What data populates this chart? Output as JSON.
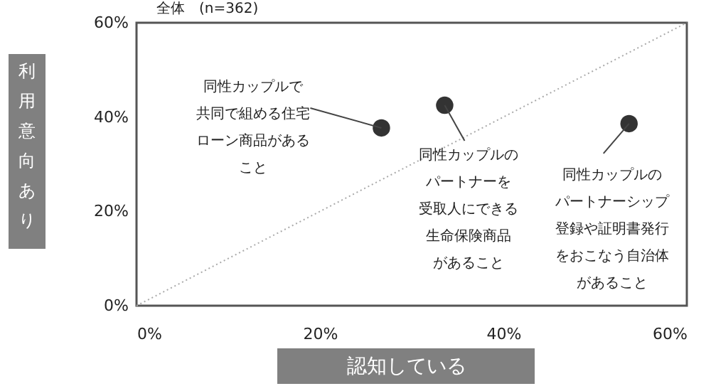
{
  "chart_data": {
    "type": "scatter",
    "title": "全体　(n=362)",
    "xlabel": "認知している",
    "ylabel": "利用意向あり",
    "xlim": [
      0,
      60
    ],
    "ylim": [
      0,
      60
    ],
    "xticks": [
      {
        "value": 0,
        "label": "0%"
      },
      {
        "value": 20,
        "label": "20%"
      },
      {
        "value": 40,
        "label": "40%"
      },
      {
        "value": 60,
        "label": "60%"
      }
    ],
    "yticks": [
      {
        "value": 0,
        "label": "0%"
      },
      {
        "value": 20,
        "label": "20%"
      },
      {
        "value": 40,
        "label": "40%"
      },
      {
        "value": 60,
        "label": "60%"
      }
    ],
    "grid": false,
    "marker": "circle",
    "series": [
      {
        "type": "line",
        "color": "#aaaaaa",
        "line_style": "dotted",
        "marker": "none",
        "x": [
          0,
          60
        ],
        "values": [
          0,
          60
        ]
      },
      {
        "color": "#333333",
        "x": [
          26.7,
          33.6,
          53.7
        ],
        "values": [
          37.7,
          42.5,
          38.6
        ]
      }
    ],
    "annotations": [
      {
        "text": "同性カップルで共同で組める住宅ローン商品があること",
        "x": 26.7,
        "y": 37.7
      },
      {
        "text": "同性カップルのパートナーを受取人にできる生命保険商品があること",
        "x": 33.6,
        "y": 42.5
      },
      {
        "text": "同性カップルのパートナーシップ登録や証明書発行をおこなう自治体があること",
        "x": 53.7,
        "y": 38.6
      }
    ]
  }
}
